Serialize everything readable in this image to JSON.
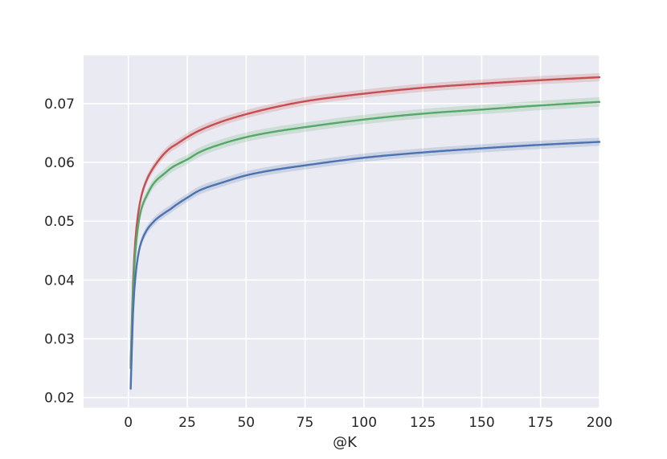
{
  "chart_data": {
    "type": "line",
    "title": "",
    "xlabel": "@K",
    "ylabel": "",
    "xlim": [
      -19,
      200
    ],
    "ylim": [
      0.0183,
      0.0782
    ],
    "xticks": [
      0,
      25,
      50,
      75,
      100,
      125,
      150,
      175,
      200
    ],
    "xtick_labels": [
      "0",
      "25",
      "50",
      "75",
      "100",
      "125",
      "150",
      "175",
      "200"
    ],
    "yticks": [
      0.02,
      0.03,
      0.04,
      0.05,
      0.06,
      0.07
    ],
    "ytick_labels": [
      "0.02",
      "0.03",
      "0.04",
      "0.05",
      "0.06",
      "0.07"
    ],
    "grid": true,
    "legend": "none",
    "background": "#eaeaf2",
    "series": [
      {
        "color": "#c44e52",
        "band": 0.0007,
        "x": [
          1,
          2,
          3,
          4,
          5,
          6,
          8,
          10,
          12,
          15,
          18,
          20,
          25,
          30,
          40,
          50,
          60,
          75,
          100,
          125,
          150,
          175,
          200
        ],
        "y": [
          0.0255,
          0.0395,
          0.0468,
          0.0508,
          0.0533,
          0.055,
          0.0572,
          0.0587,
          0.0599,
          0.0614,
          0.0625,
          0.063,
          0.0643,
          0.0654,
          0.067,
          0.0682,
          0.0692,
          0.0704,
          0.0717,
          0.0727,
          0.0734,
          0.074,
          0.0745
        ]
      },
      {
        "color": "#55a868",
        "band": 0.0008,
        "x": [
          1,
          2,
          3,
          4,
          5,
          6,
          8,
          10,
          12,
          15,
          18,
          20,
          25,
          30,
          40,
          50,
          60,
          75,
          100,
          125,
          150,
          175,
          200
        ],
        "y": [
          0.025,
          0.038,
          0.0448,
          0.0487,
          0.0512,
          0.0527,
          0.0545,
          0.056,
          0.057,
          0.058,
          0.059,
          0.0595,
          0.0605,
          0.0617,
          0.0632,
          0.0643,
          0.0651,
          0.066,
          0.0673,
          0.0683,
          0.069,
          0.0697,
          0.0703
        ]
      },
      {
        "color": "#4c72b0",
        "band": 0.0007,
        "x": [
          1,
          2,
          3,
          4,
          5,
          6,
          8,
          10,
          12,
          15,
          18,
          20,
          25,
          30,
          40,
          50,
          60,
          75,
          100,
          125,
          150,
          175,
          200
        ],
        "y": [
          0.0215,
          0.0345,
          0.0405,
          0.0438,
          0.0458,
          0.047,
          0.0486,
          0.0496,
          0.0504,
          0.0513,
          0.0521,
          0.0527,
          0.054,
          0.0552,
          0.0566,
          0.0578,
          0.0586,
          0.0595,
          0.0608,
          0.0617,
          0.0624,
          0.063,
          0.0635
        ]
      }
    ]
  }
}
